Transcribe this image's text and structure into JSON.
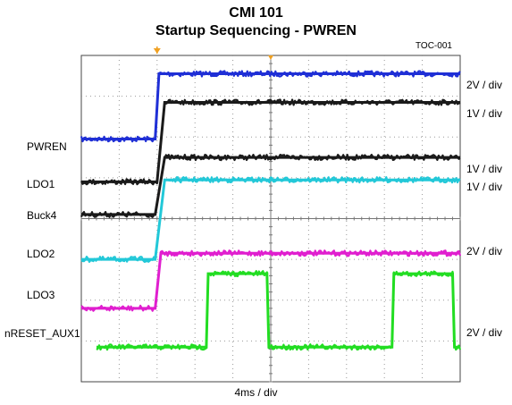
{
  "chart_data": {
    "type": "line",
    "title": "CMI  101",
    "subtitle": "Startup Sequencing - PWREN",
    "figure_id": "TOC-001",
    "xlabel": "4ms / div",
    "x_unit": "div",
    "xlim": [
      0,
      10
    ],
    "ylim_div": [
      -4,
      4
    ],
    "grid": true,
    "trigger_time_div": 2.0,
    "series": [
      {
        "name": "PWREN",
        "scale": "2V / div",
        "color": "#1f2fd6",
        "x": [
          0,
          1.95,
          2.05,
          10
        ],
        "y_div": [
          1.95,
          1.95,
          3.55,
          3.55
        ]
      },
      {
        "name": "LDO1",
        "scale": "1V / div",
        "color": "#1a1a1a",
        "x": [
          0,
          2.0,
          2.2,
          10
        ],
        "y_div": [
          0.9,
          0.9,
          2.85,
          2.85
        ]
      },
      {
        "name": "Buck4",
        "scale": "1V / div",
        "color": "#1a1a1a",
        "x": [
          0,
          1.95,
          2.2,
          10
        ],
        "y_div": [
          0.1,
          0.1,
          1.5,
          1.5
        ]
      },
      {
        "name": "LDO2",
        "scale": "1V / div",
        "color": "#22c8d8",
        "x": [
          0,
          1.95,
          2.2,
          10
        ],
        "y_div": [
          -1.0,
          -1.0,
          0.95,
          0.95
        ]
      },
      {
        "name": "LDO3",
        "scale": "2V / div",
        "color": "#e01ecf",
        "x": [
          0,
          1.95,
          2.1,
          10
        ],
        "y_div": [
          -2.2,
          -2.2,
          -0.85,
          -0.85
        ]
      },
      {
        "name": "nRESET_AUX1",
        "scale": "2V / div",
        "color": "#22dd22",
        "x": [
          0.4,
          3.3,
          3.35,
          4.9,
          4.95,
          8.2,
          8.25,
          9.8,
          9.85,
          10
        ],
        "y_div": [
          -3.15,
          -3.15,
          -1.35,
          -1.35,
          -3.15,
          -3.15,
          -1.35,
          -1.35,
          -3.15,
          -3.15
        ]
      }
    ]
  }
}
